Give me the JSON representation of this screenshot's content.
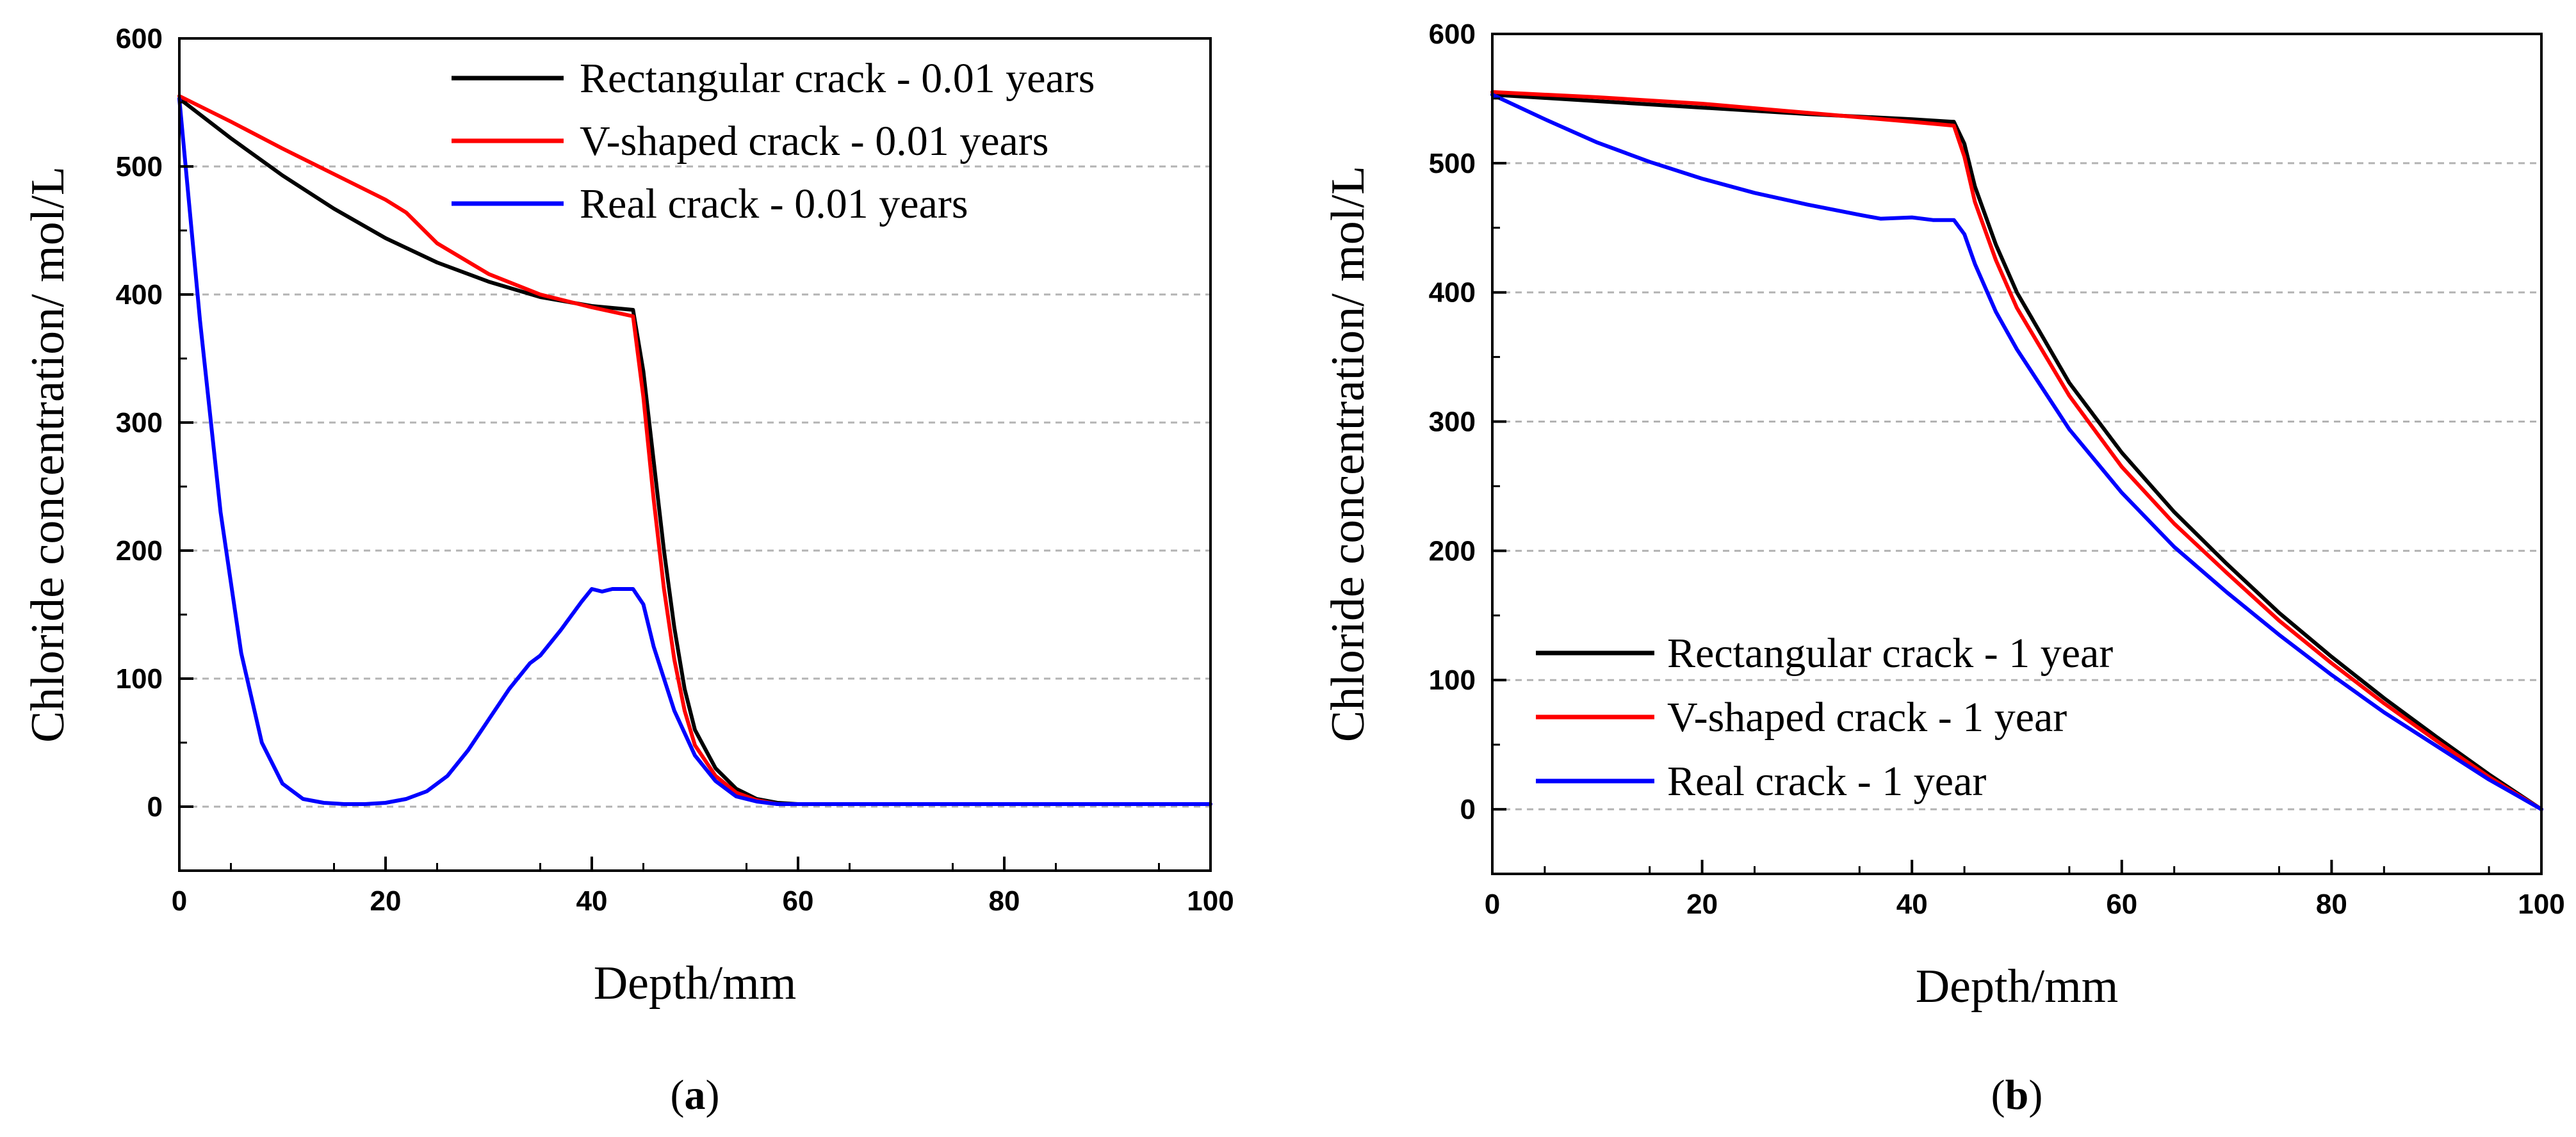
{
  "chart_data": [
    {
      "type": "line",
      "panel_label": "a",
      "xlabel": "Depth/mm",
      "ylabel": "Chloride concentration/ mol/L",
      "xlim": [
        0,
        100
      ],
      "ylim": [
        -50,
        600
      ],
      "xticks": [
        0,
        20,
        40,
        60,
        80,
        100
      ],
      "yticks": [
        0,
        100,
        200,
        300,
        400,
        500,
        600
      ],
      "grid": "horizontal-dashed",
      "legend_position": "top-right",
      "series": [
        {
          "name": "Rectangular crack - 0.01 years",
          "color": "#000000",
          "x": [
            0,
            5,
            10,
            15,
            20,
            25,
            30,
            35,
            40,
            44,
            45,
            46,
            47,
            48,
            49,
            50,
            52,
            54,
            56,
            58,
            60,
            65,
            70,
            80,
            90,
            100
          ],
          "y": [
            553,
            522,
            493,
            467,
            444,
            425,
            410,
            398,
            391,
            388,
            340,
            270,
            200,
            140,
            92,
            60,
            30,
            14,
            6,
            3,
            2,
            2,
            2,
            2,
            2,
            2
          ]
        },
        {
          "name": "V-shaped crack - 0.01 years",
          "color": "#ff0000",
          "x": [
            0,
            5,
            10,
            15,
            20,
            22,
            25,
            30,
            35,
            40,
            44,
            45,
            46,
            47,
            48,
            49,
            50,
            52,
            54,
            56,
            58,
            60,
            65,
            70,
            80,
            90,
            100
          ],
          "y": [
            555,
            535,
            514,
            494,
            474,
            464,
            440,
            416,
            400,
            390,
            383,
            320,
            240,
            170,
            115,
            75,
            48,
            24,
            11,
            5,
            2,
            2,
            2,
            2,
            2,
            2,
            2
          ]
        },
        {
          "name": "Real crack - 0.01 years",
          "color": "#0000ff",
          "x": [
            0,
            2,
            4,
            6,
            8,
            10,
            12,
            14,
            16,
            18,
            20,
            22,
            24,
            26,
            28,
            30,
            32,
            34,
            35,
            37,
            39,
            40,
            41,
            42,
            43,
            44,
            45,
            46,
            48,
            50,
            52,
            54,
            56,
            58,
            60,
            65,
            70,
            80,
            90,
            100
          ],
          "y": [
            553,
            380,
            230,
            120,
            50,
            18,
            6,
            3,
            2,
            2,
            3,
            6,
            12,
            24,
            44,
            68,
            92,
            112,
            118,
            138,
            160,
            170,
            168,
            170,
            170,
            170,
            158,
            125,
            75,
            40,
            20,
            8,
            4,
            2,
            2,
            2,
            2,
            2,
            2,
            2
          ]
        }
      ]
    },
    {
      "type": "line",
      "panel_label": "b",
      "xlabel": "Depth/mm",
      "ylabel": "Chloride concentration/ mol/L",
      "xlim": [
        0,
        100
      ],
      "ylim": [
        -50,
        600
      ],
      "xticks": [
        0,
        20,
        40,
        60,
        80,
        100
      ],
      "yticks": [
        0,
        100,
        200,
        300,
        400,
        500,
        600
      ],
      "grid": "horizontal-dashed",
      "legend_position": "bottom-left",
      "series": [
        {
          "name": "Rectangular crack - 1 year",
          "color": "#000000",
          "x": [
            0,
            10,
            20,
            30,
            40,
            44,
            45,
            46,
            48,
            50,
            55,
            60,
            65,
            70,
            75,
            80,
            85,
            90,
            95,
            100
          ],
          "y": [
            553,
            548,
            543,
            538,
            534,
            532,
            515,
            482,
            437,
            400,
            330,
            276,
            230,
            190,
            152,
            118,
            86,
            56,
            27,
            0
          ]
        },
        {
          "name": "V-shaped crack - 1 year",
          "color": "#ff0000",
          "x": [
            0,
            10,
            20,
            30,
            40,
            44,
            45,
            46,
            48,
            50,
            55,
            60,
            65,
            70,
            75,
            80,
            85,
            90,
            95,
            100
          ],
          "y": [
            555,
            551,
            546,
            539,
            532,
            529,
            505,
            470,
            425,
            388,
            320,
            265,
            221,
            183,
            146,
            113,
            82,
            53,
            25,
            0
          ]
        },
        {
          "name": "Real crack - 1 year",
          "color": "#0000ff",
          "x": [
            0,
            5,
            10,
            15,
            20,
            25,
            30,
            35,
            37,
            40,
            42,
            44,
            45,
            46,
            48,
            50,
            55,
            60,
            65,
            70,
            75,
            80,
            85,
            90,
            95,
            100
          ],
          "y": [
            553,
            534,
            516,
            501,
            488,
            477,
            468,
            460,
            457,
            458,
            456,
            456,
            445,
            422,
            385,
            356,
            294,
            245,
            203,
            168,
            135,
            104,
            75,
            49,
            23,
            0
          ]
        }
      ]
    }
  ]
}
